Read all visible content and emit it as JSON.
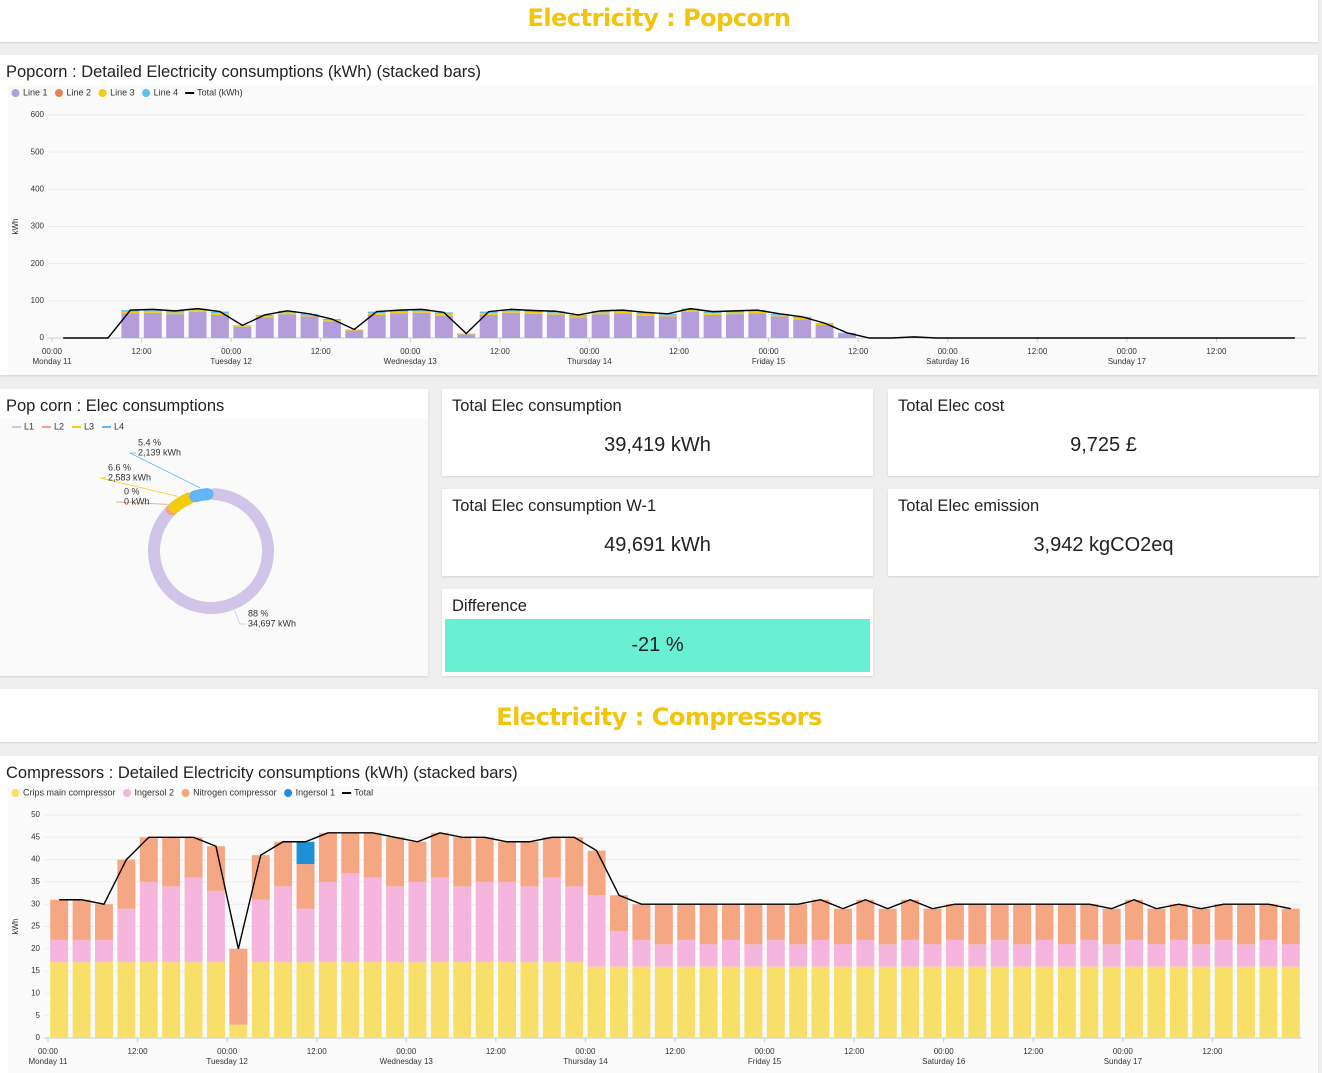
{
  "sections": [
    "Electricity : Popcorn",
    "Electricity : Compressors"
  ],
  "stats": [
    {
      "title": "Total Elec consumption",
      "value": "39,419 kWh"
    },
    {
      "title": "Total Elec cost",
      "value": "9,725 £"
    },
    {
      "title": "Total Elec consumption W-1",
      "value": "49,691 kWh"
    },
    {
      "title": "Total Elec emission",
      "value": "3,942 kgCO2eq"
    },
    {
      "title": "Difference",
      "value": "-21 %",
      "background": "#69efd2"
    }
  ],
  "chart_data": [
    {
      "type": "bar",
      "stacked": true,
      "title": "Popcorn : Detailed Electricity consumptions (kWh) (stacked bars)",
      "ylabel": "kWh",
      "x": [
        0,
        3,
        6,
        9,
        12,
        15,
        18,
        21,
        24,
        27,
        30,
        33,
        36,
        39,
        42,
        45,
        48,
        51,
        54,
        57,
        60,
        63,
        66,
        69,
        72,
        75,
        78,
        81,
        84,
        87,
        90,
        93,
        96,
        99,
        102,
        105,
        108,
        111,
        114,
        117,
        120,
        123,
        126,
        129,
        132,
        135,
        138,
        141,
        144,
        147,
        150,
        153,
        156,
        159,
        162,
        165
      ],
      "xlim": [
        0,
        168
      ],
      "xticks": [
        {
          "value": 0,
          "label": "00:00",
          "day": "Monday 11"
        },
        {
          "value": 12,
          "label": "12:00"
        },
        {
          "value": 24,
          "label": "00:00",
          "day": "Tuesday 12"
        },
        {
          "value": 36,
          "label": "12:00"
        },
        {
          "value": 48,
          "label": "00:00",
          "day": "Wednesday 13"
        },
        {
          "value": 60,
          "label": "12:00"
        },
        {
          "value": 72,
          "label": "00:00",
          "day": "Thursday 14"
        },
        {
          "value": 84,
          "label": "12:00"
        },
        {
          "value": 96,
          "label": "00:00",
          "day": "Friday 15"
        },
        {
          "value": 108,
          "label": "12:00"
        },
        {
          "value": 120,
          "label": "00:00",
          "day": "Saturday 16"
        },
        {
          "value": 132,
          "label": "12:00"
        },
        {
          "value": 144,
          "label": "00:00",
          "day": "Sunday 17"
        },
        {
          "value": 156,
          "label": "12:00"
        }
      ],
      "ylim": [
        0,
        600
      ],
      "yticks": [
        0,
        100,
        200,
        300,
        400,
        500,
        600
      ],
      "grid": true,
      "series": [
        {
          "name": "Line 1",
          "color": "#b39ddb",
          "values": [
            0,
            0,
            0,
            66,
            68,
            64,
            70,
            62,
            30,
            55,
            64,
            58,
            45,
            20,
            62,
            66,
            68,
            60,
            10,
            62,
            68,
            65,
            63,
            55,
            64,
            66,
            60,
            58,
            70,
            62,
            64,
            66,
            58,
            50,
            35,
            12,
            0,
            0,
            3,
            0,
            0,
            0,
            0,
            0,
            0,
            0,
            0,
            0,
            0,
            0,
            0,
            0,
            0,
            0,
            0,
            0
          ]
        },
        {
          "name": "Line 2",
          "color": "#e8825a",
          "values": [
            0,
            0,
            0,
            0,
            0,
            0,
            0,
            0,
            0,
            0,
            0,
            0,
            0,
            0,
            0,
            0,
            0,
            0,
            0,
            0,
            0,
            0,
            0,
            0,
            0,
            0,
            0,
            0,
            0,
            0,
            0,
            0,
            0,
            0,
            0,
            0,
            0,
            0,
            0,
            0,
            0,
            0,
            0,
            0,
            0,
            0,
            0,
            0,
            0,
            0,
            0,
            0,
            0,
            0,
            0,
            0
          ]
        },
        {
          "name": "Line 3",
          "color": "#f2cc0c",
          "values": [
            0,
            0,
            0,
            5,
            5,
            5,
            5,
            5,
            2,
            4,
            5,
            4,
            3,
            2,
            5,
            5,
            5,
            5,
            1,
            5,
            5,
            5,
            5,
            4,
            5,
            5,
            5,
            4,
            5,
            5,
            5,
            5,
            4,
            4,
            3,
            1,
            0,
            0,
            0,
            0,
            0,
            0,
            0,
            0,
            0,
            0,
            0,
            0,
            0,
            0,
            0,
            0,
            0,
            0,
            0,
            0
          ]
        },
        {
          "name": "Line 4",
          "color": "#5bc0eb",
          "values": [
            0,
            0,
            0,
            4,
            4,
            4,
            4,
            4,
            2,
            3,
            4,
            3,
            3,
            1,
            4,
            4,
            4,
            4,
            1,
            4,
            4,
            4,
            4,
            3,
            4,
            4,
            4,
            3,
            4,
            4,
            4,
            4,
            3,
            3,
            2,
            1,
            0,
            0,
            0,
            0,
            0,
            0,
            0,
            0,
            0,
            0,
            0,
            0,
            0,
            0,
            0,
            0,
            0,
            0,
            0,
            0
          ]
        },
        {
          "name": "Total (kWh)",
          "color": "#000000",
          "line": true,
          "values": [
            0,
            0,
            0,
            75,
            77,
            73,
            79,
            71,
            34,
            62,
            73,
            65,
            51,
            23,
            71,
            75,
            77,
            69,
            12,
            71,
            77,
            74,
            72,
            62,
            73,
            75,
            69,
            65,
            79,
            71,
            73,
            75,
            65,
            57,
            40,
            14,
            0,
            0,
            3,
            0,
            0,
            0,
            0,
            0,
            0,
            0,
            0,
            0,
            0,
            0,
            0,
            0,
            0,
            0,
            0,
            0
          ]
        }
      ]
    },
    {
      "type": "pie",
      "donut": true,
      "title": "Pop corn : Elec consumptions",
      "categories": [
        "L1",
        "L2",
        "L3",
        "L4"
      ],
      "colors": [
        "#d1c4e9",
        "#f4a18c",
        "#f2cc0c",
        "#64b5f6"
      ],
      "values": [
        34697,
        0,
        2583,
        2139
      ],
      "value_labels": [
        "34,697 kWh",
        "0 kWh",
        "2,583 kWh",
        "2,139 kWh"
      ],
      "percent_labels": [
        "88 %",
        "0 %",
        "6.6 %",
        "5.4 %"
      ]
    },
    {
      "type": "bar",
      "stacked": true,
      "title": "Compressors : Detailed Electricity consumptions (kWh) (stacked bars)",
      "ylabel": "kWh",
      "x": [
        0,
        3,
        6,
        9,
        12,
        15,
        18,
        21,
        24,
        27,
        30,
        33,
        36,
        39,
        42,
        45,
        48,
        51,
        54,
        57,
        60,
        63,
        66,
        69,
        72,
        75,
        78,
        81,
        84,
        87,
        90,
        93,
        96,
        99,
        102,
        105,
        108,
        111,
        114,
        117,
        120,
        123,
        126,
        129,
        132,
        135,
        138,
        141,
        144,
        147,
        150,
        153,
        156,
        159,
        162,
        165
      ],
      "xlim": [
        0,
        168
      ],
      "xticks": [
        {
          "value": 0,
          "label": "00:00",
          "day": "Monday 11"
        },
        {
          "value": 12,
          "label": "12:00"
        },
        {
          "value": 24,
          "label": "00:00",
          "day": "Tuesday 12"
        },
        {
          "value": 36,
          "label": "12:00"
        },
        {
          "value": 48,
          "label": "00:00",
          "day": "Wednesday 13"
        },
        {
          "value": 60,
          "label": "12:00"
        },
        {
          "value": 72,
          "label": "00:00",
          "day": "Thursday 14"
        },
        {
          "value": 84,
          "label": "12:00"
        },
        {
          "value": 96,
          "label": "00:00",
          "day": "Friday 15"
        },
        {
          "value": 108,
          "label": "12:00"
        },
        {
          "value": 120,
          "label": "00:00",
          "day": "Saturday 16"
        },
        {
          "value": 132,
          "label": "12:00"
        },
        {
          "value": 144,
          "label": "00:00",
          "day": "Sunday 17"
        },
        {
          "value": 156,
          "label": "12:00"
        }
      ],
      "ylim": [
        0,
        50
      ],
      "yticks": [
        0,
        5,
        10,
        15,
        20,
        25,
        30,
        35,
        40,
        45,
        50
      ],
      "grid": true,
      "series": [
        {
          "name": "Crips main compressor",
          "color": "#f7df6a",
          "values": [
            17,
            17,
            17,
            17,
            17,
            17,
            17,
            17,
            3,
            17,
            17,
            17,
            17,
            17,
            17,
            17,
            17,
            17,
            17,
            17,
            17,
            17,
            17,
            17,
            16,
            16,
            16,
            16,
            16,
            16,
            16,
            16,
            16,
            16,
            16,
            16,
            16,
            16,
            16,
            16,
            16,
            16,
            16,
            16,
            16,
            16,
            16,
            16,
            16,
            16,
            16,
            16,
            16,
            16,
            16,
            16
          ]
        },
        {
          "name": "Ingersol 2",
          "color": "#f6b5dc",
          "values": [
            5,
            5,
            5,
            12,
            18,
            17,
            19,
            16,
            0,
            14,
            17,
            12,
            18,
            20,
            19,
            17,
            18,
            19,
            17,
            18,
            18,
            17,
            19,
            17,
            16,
            8,
            6,
            5,
            6,
            5,
            6,
            5,
            6,
            5,
            6,
            5,
            6,
            5,
            6,
            5,
            6,
            5,
            6,
            5,
            6,
            5,
            6,
            5,
            6,
            5,
            6,
            5,
            6,
            5,
            6,
            5
          ]
        },
        {
          "name": "Nitrogen compressor",
          "color": "#f5a683",
          "values": [
            9,
            9,
            8,
            11,
            10,
            11,
            9,
            10,
            17,
            10,
            10,
            10,
            11,
            9,
            10,
            11,
            9,
            10,
            11,
            10,
            9,
            10,
            9,
            11,
            10,
            8,
            8,
            9,
            8,
            9,
            8,
            9,
            8,
            9,
            9,
            8,
            9,
            8,
            9,
            8,
            8,
            9,
            8,
            9,
            8,
            9,
            8,
            8,
            9,
            8,
            8,
            8,
            8,
            9,
            8,
            8
          ]
        },
        {
          "name": "Ingersol 1",
          "color": "#1f8fd6",
          "values": [
            0,
            0,
            0,
            0,
            0,
            0,
            0,
            0,
            0,
            0,
            0,
            5,
            0,
            0,
            0,
            0,
            0,
            0,
            0,
            0,
            0,
            0,
            0,
            0,
            0,
            0,
            0,
            0,
            0,
            0,
            0,
            0,
            0,
            0,
            0,
            0,
            0,
            0,
            0,
            0,
            0,
            0,
            0,
            0,
            0,
            0,
            0,
            0,
            0,
            0,
            0,
            0,
            0,
            0,
            0,
            0
          ]
        },
        {
          "name": "Total",
          "color": "#000000",
          "line": true,
          "values": [
            31,
            31,
            30,
            40,
            45,
            45,
            45,
            43,
            20,
            41,
            44,
            44,
            46,
            46,
            46,
            45,
            44,
            46,
            45,
            45,
            44,
            44,
            45,
            45,
            42,
            32,
            30,
            30,
            30,
            30,
            30,
            30,
            30,
            30,
            31,
            29,
            31,
            29,
            31,
            29,
            30,
            30,
            30,
            30,
            30,
            30,
            30,
            29,
            31,
            29,
            30,
            29,
            30,
            30,
            30,
            29
          ]
        }
      ]
    }
  ]
}
